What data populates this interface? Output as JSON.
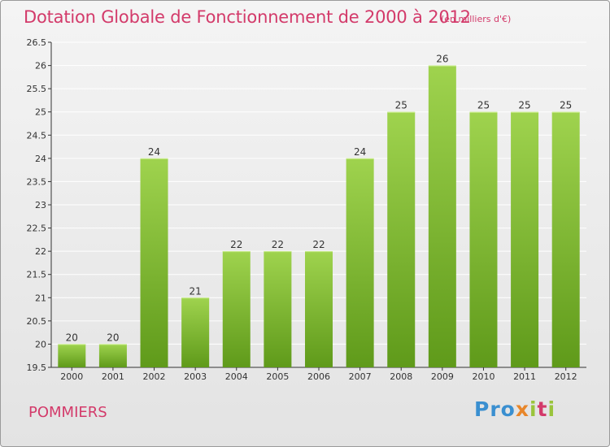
{
  "header": {
    "title": "Dotation Globale de Fonctionnement de 2000 à 2012",
    "unit": "(en milliers d'€)"
  },
  "footer": {
    "commune": "POMMIERS",
    "logo": {
      "parts": [
        "Pro",
        "x",
        "i",
        "t",
        "i"
      ],
      "colors": [
        "#3a8fd0",
        "#e8862a",
        "#9ac43c",
        "#d33a6a",
        "#9ac43c"
      ]
    }
  },
  "colors": {
    "accent": "#d33a6a",
    "bar_top": "#9fd34e",
    "bar_bottom": "#5f9a1a",
    "grid": "#ffffff",
    "axis": "#333333"
  },
  "chart_data": {
    "type": "bar",
    "categories": [
      "2000",
      "2001",
      "2002",
      "2003",
      "2004",
      "2005",
      "2006",
      "2007",
      "2008",
      "2009",
      "2010",
      "2011",
      "2012"
    ],
    "values": [
      20,
      20,
      24,
      21,
      22,
      22,
      22,
      24,
      25,
      26,
      25,
      25,
      25
    ],
    "ylim": [
      19.5,
      26.5
    ],
    "yticks": [
      "19.5",
      "20",
      "20.5",
      "21",
      "21.5",
      "22",
      "22.5",
      "23",
      "23.5",
      "24",
      "24.5",
      "25",
      "25.5",
      "26",
      "26.5"
    ],
    "grid": true
  }
}
